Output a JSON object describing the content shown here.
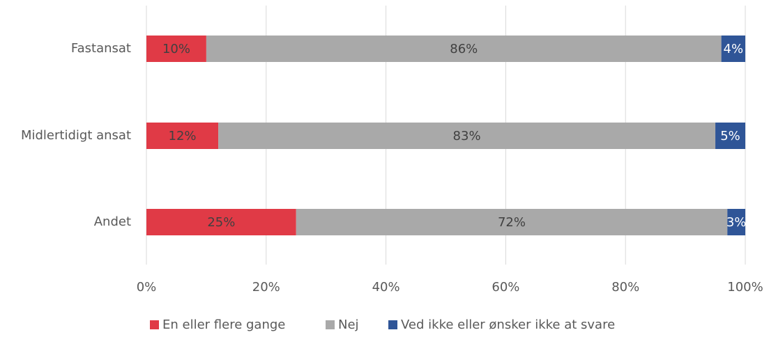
{
  "chart_data": {
    "type": "stacked-barh",
    "categories": [
      "Fastansat",
      "Midlertidigt ansat",
      "Andet"
    ],
    "series": [
      {
        "name": "En eller flere gange",
        "color": "#e03a46",
        "values": [
          10,
          12,
          25
        ],
        "value_labels": [
          "10%",
          "12%",
          "25%"
        ]
      },
      {
        "name": "Nej",
        "color": "#a9a9a9",
        "values": [
          86,
          83,
          72
        ],
        "value_labels": [
          "86%",
          "83%",
          "72%"
        ]
      },
      {
        "name": "Ved ikke eller ønsker ikke at svare",
        "color": "#2f5597",
        "values": [
          4,
          5,
          3
        ],
        "value_labels": [
          "4%",
          "5%",
          "3%"
        ]
      }
    ],
    "xlim": [
      0,
      100
    ],
    "xticks": [
      {
        "value": 0,
        "label": "0%"
      },
      {
        "value": 20,
        "label": "20%"
      },
      {
        "value": 40,
        "label": "40%"
      },
      {
        "value": 60,
        "label": "60%"
      },
      {
        "value": 80,
        "label": "80%"
      },
      {
        "value": 100,
        "label": "100%"
      }
    ],
    "grid": true,
    "legend": "bottom"
  }
}
